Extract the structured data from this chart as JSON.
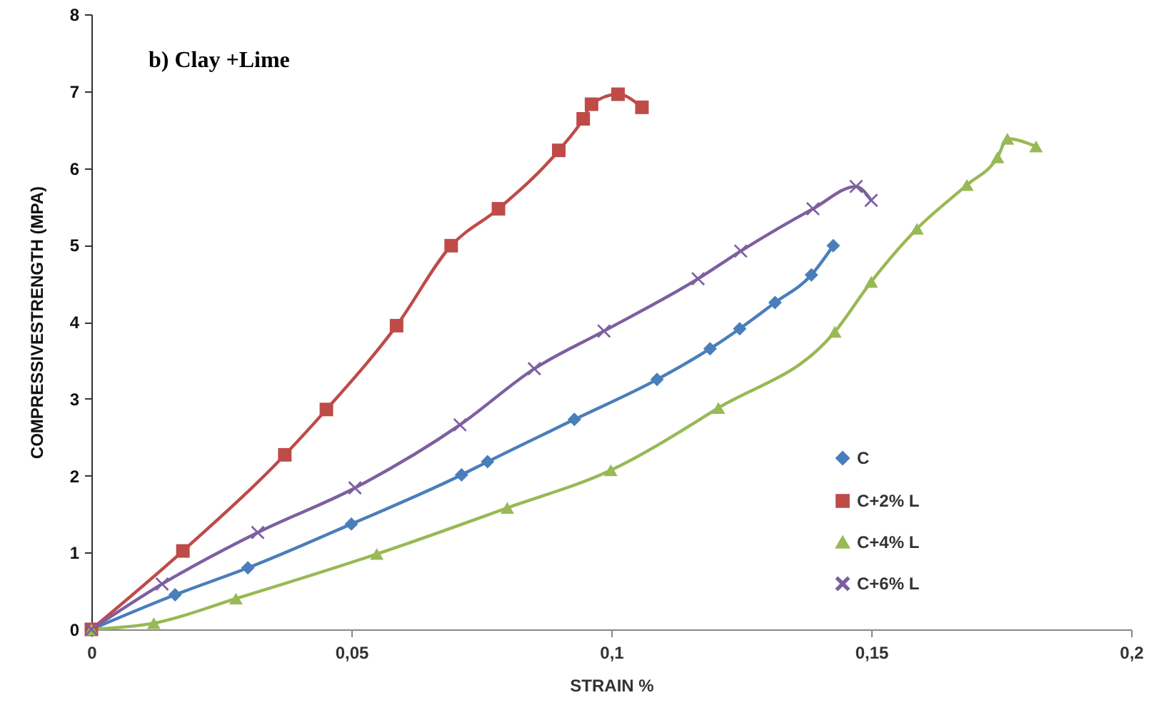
{
  "chart_data": {
    "type": "line",
    "title": "b) Clay +Lime",
    "xlabel": "STRAIN %",
    "ylabel": "COMPRESSIVESTRENGTH (MPA)",
    "xlim": [
      0,
      0.2
    ],
    "xticks": [
      0,
      {
        "value": 0.05,
        "label": "0,05"
      },
      {
        "value": 0.1,
        "label": "0,1"
      },
      {
        "value": 0.15,
        "label": "0,15"
      },
      {
        "value": 0.2,
        "label": "0,2"
      }
    ],
    "ylim": [
      0,
      8
    ],
    "yticks": [
      0,
      1,
      2,
      3,
      4,
      5,
      6,
      7,
      8
    ],
    "grid": false,
    "legend": "bottom right",
    "series": [
      {
        "name": "C",
        "color": "#4a7ebb",
        "marker": "diamond",
        "x": [
          0,
          0.0161,
          0.0301,
          0.05,
          0.0712,
          0.0762,
          0.0929,
          0.1088,
          0.119,
          0.1247,
          0.1315,
          0.1385,
          0.1427
        ],
        "values": [
          0,
          0.45,
          0.8,
          1.37,
          2.01,
          2.18,
          2.73,
          3.25,
          3.65,
          3.91,
          4.25,
          4.61,
          4.99
        ]
      },
      {
        "name": "C+2% L",
        "color": "#be4b48",
        "marker": "square",
        "x": [
          0,
          0.0176,
          0.0372,
          0.0452,
          0.0587,
          0.0692,
          0.0783,
          0.0899,
          0.0946,
          0.0962,
          0.1013,
          0.1059
        ],
        "values": [
          0,
          1.02,
          2.27,
          2.86,
          3.95,
          4.99,
          5.47,
          6.23,
          6.64,
          6.83,
          6.96,
          6.79
        ]
      },
      {
        "name": "C+4% L",
        "color": "#98b954",
        "marker": "triangle",
        "x": [
          0,
          0.012,
          0.0278,
          0.0549,
          0.08,
          0.0999,
          0.1206,
          0.143,
          0.15,
          0.1588,
          0.1684,
          0.1743,
          0.1762,
          0.1817
        ],
        "values": [
          0,
          0.08,
          0.4,
          0.98,
          1.58,
          2.07,
          2.88,
          3.87,
          4.52,
          5.21,
          5.78,
          6.14,
          6.38,
          6.28
        ]
      },
      {
        "name": "C+6% L",
        "color": "#7d5fa0",
        "marker": "cross",
        "x": [
          0,
          0.0136,
          0.032,
          0.0507,
          0.0709,
          0.0852,
          0.0986,
          0.1167,
          0.1249,
          0.1388,
          0.1471,
          0.15
        ],
        "values": [
          0,
          0.59,
          1.26,
          1.84,
          2.66,
          3.39,
          3.88,
          4.56,
          4.92,
          5.47,
          5.76,
          5.58
        ]
      }
    ]
  }
}
